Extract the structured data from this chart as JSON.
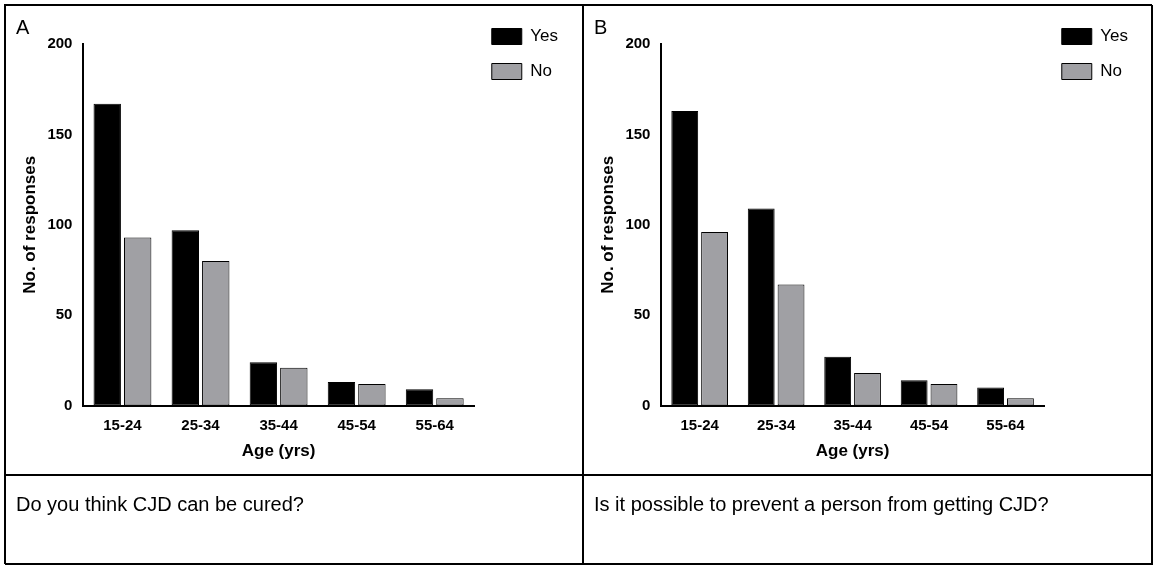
{
  "chart_data": [
    {
      "type": "bar",
      "title": "A",
      "xlabel": "Age (yrs)",
      "ylabel": "No. of responses",
      "categories": [
        "15-24",
        "25-34",
        "35-44",
        "45-54",
        "55-64"
      ],
      "series": [
        {
          "name": "Yes",
          "color": "#000000",
          "values": [
            167,
            97,
            24,
            13,
            9
          ]
        },
        {
          "name": "No",
          "color": "#a0a0a4",
          "values": [
            93,
            80,
            21,
            12,
            4
          ]
        }
      ],
      "ylim": [
        0,
        200
      ],
      "yticks": [
        0,
        50,
        100,
        150,
        200
      ],
      "legend": "top right",
      "annotations": [
        "Do you think CJD can be cured?"
      ]
    },
    {
      "type": "bar",
      "title": "B",
      "xlabel": "Age (yrs)",
      "ylabel": "No. of responses",
      "categories": [
        "15-24",
        "25-34",
        "35-44",
        "45-54",
        "55-64"
      ],
      "series": [
        {
          "name": "Yes",
          "color": "#000000",
          "values": [
            163,
            109,
            27,
            14,
            10
          ]
        },
        {
          "name": "No",
          "color": "#a0a0a4",
          "values": [
            96,
            67,
            18,
            12,
            4
          ]
        }
      ],
      "ylim": [
        0,
        200
      ],
      "yticks": [
        0,
        50,
        100,
        150,
        200
      ],
      "legend": "top right",
      "annotations": [
        "Is it possible to prevent a person from getting CJD?"
      ]
    }
  ]
}
